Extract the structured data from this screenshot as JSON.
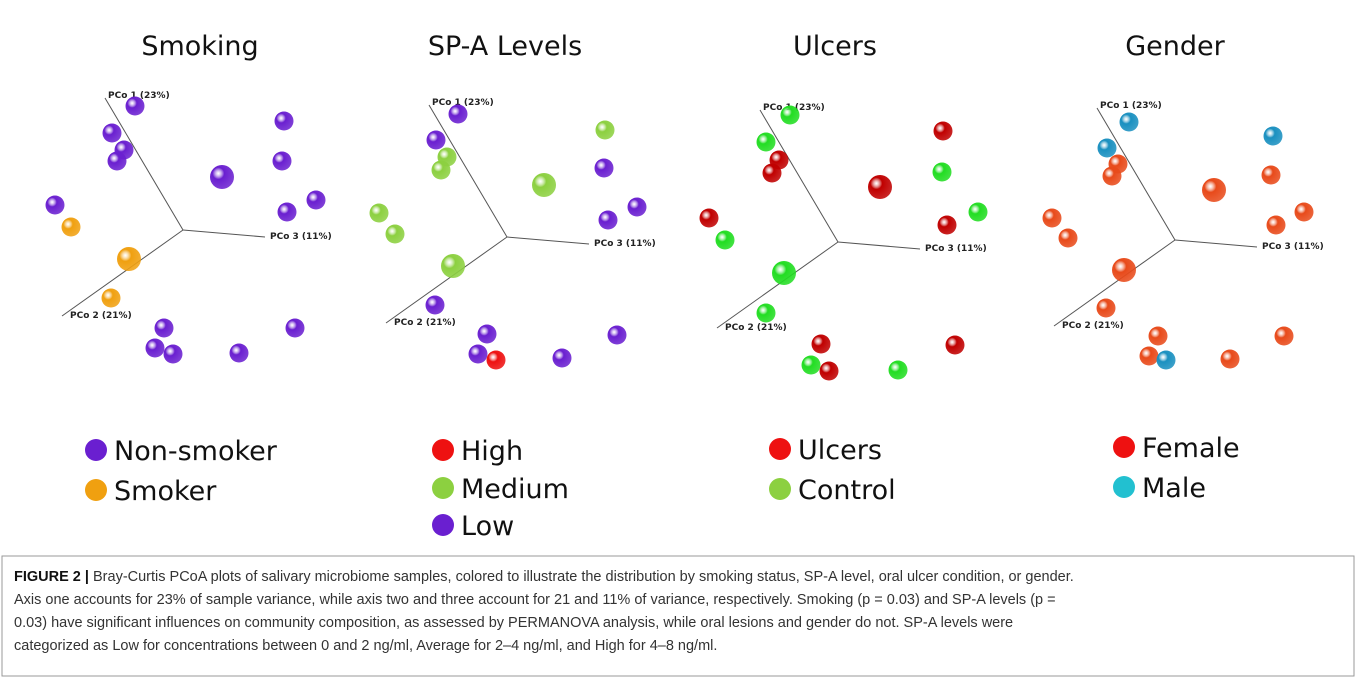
{
  "panels": [
    {
      "title": "Smoking",
      "axes": [
        "PCo 1 (23%)",
        "PCo 3 (11%)",
        "PCo 2 (21%)"
      ],
      "legend": [
        "Non-smoker",
        "Smoker"
      ]
    },
    {
      "title": "SP-A Levels",
      "axes": [
        "PCo 1 (23%)",
        "PCo 3 (11%)",
        "PCo 2 (21%)"
      ],
      "legend": [
        "High",
        "Medium",
        "Low"
      ]
    },
    {
      "title": "Ulcers",
      "axes": [
        "PCo 1 (23%)",
        "PCo 3 (11%)",
        "PCo 2 (21%)"
      ],
      "legend": [
        "Ulcers",
        "Control"
      ]
    },
    {
      "title": "Gender",
      "axes": [
        "PCo 1 (23%)",
        "PCo 3 (11%)",
        "PCo 2 (21%)"
      ],
      "legend": [
        "Female",
        "Male"
      ]
    }
  ],
  "caption": {
    "label": "FIGURE 2 |",
    "lines": [
      "Bray-Curtis PCoA plots of salivary microbiome samples, colored to illustrate the distribution by smoking status, SP-A level, oral ulcer condition, or gender.",
      "Axis one accounts for 23% of sample variance, while axis two and three account for 21 and 11% of variance, respectively. Smoking (p = 0.03) and SP-A levels (p =",
      "0.03) have significant influences on community composition, as assessed by PERMANOVA analysis, while oral lesions and gender do not. SP-A levels were",
      "categorized as Low for concentrations between 0 and 2 ng/ml, Average for 2–4 ng/ml, and High for 4–8 ng/ml."
    ]
  }
}
